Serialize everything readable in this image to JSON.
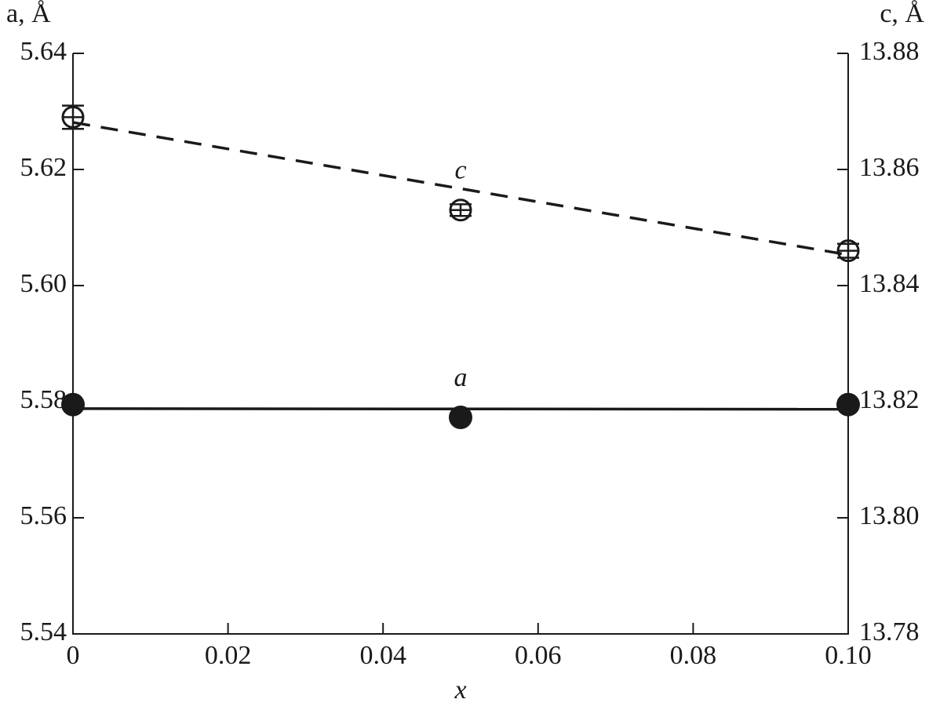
{
  "chart_data": {
    "type": "scatter",
    "x_label": "x",
    "y_label": "a, Å",
    "y2_label": "c, Å",
    "x": [
      0,
      0.05,
      0.1
    ],
    "series": [
      {
        "name": "a",
        "color": "#1a1a1a",
        "marker": "filled",
        "values": [
          5.5795,
          5.5773,
          5.5795
        ],
        "errors": [
          0.0003,
          0.0003,
          0.0003
        ]
      },
      {
        "name": "c",
        "color": "#1a1a1a",
        "marker": "open",
        "axis": "y2",
        "values": [
          13.869,
          13.853,
          13.846
        ],
        "errors": [
          0.002,
          0.001,
          0.0012
        ]
      }
    ],
    "fits": [
      {
        "x": [
          0,
          0.1
        ],
        "values": [
          5.5788,
          5.5787
        ],
        "style": "solid",
        "color": "#1a1a1a"
      },
      {
        "x": [
          0,
          0.1
        ],
        "values": [
          13.8681,
          13.8453
        ],
        "style": "dashed",
        "axis": "y2",
        "color": "#1a1a1a"
      }
    ],
    "xlim": [
      0,
      0.1
    ],
    "xticks": [
      0,
      0.02,
      0.04,
      0.06,
      0.08,
      {
        "value": 0.1,
        "label": "0.10"
      }
    ],
    "ylim": [
      5.54,
      5.64
    ],
    "yticks": [
      5.64,
      5.62,
      {
        "value": 5.6,
        "label": "5.60"
      },
      5.58,
      5.56,
      5.54
    ],
    "y2lim": [
      13.78,
      13.88
    ],
    "y2ticks": [
      13.88,
      13.86,
      13.84,
      13.82,
      {
        "value": 13.8,
        "label": "13.80"
      },
      13.78
    ]
  }
}
